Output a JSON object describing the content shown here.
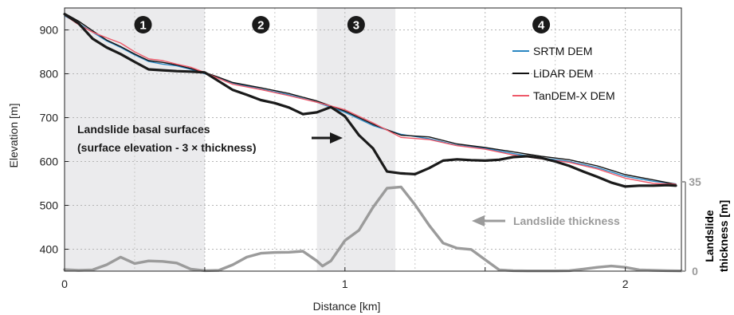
{
  "chart_data": {
    "type": "line",
    "xlabel": "Distance [km]",
    "ylabel": "Elevation [m]",
    "xlim": [
      0,
      2.2
    ],
    "ylim": [
      350,
      950
    ],
    "x_ticks": [
      0,
      0.5,
      1,
      1.5,
      2
    ],
    "x_tick_labels": [
      "0",
      "",
      "1",
      "",
      "2"
    ],
    "y_ticks": [
      400,
      500,
      600,
      700,
      800,
      900
    ],
    "y_tick_labels": [
      "400",
      "500",
      "600",
      "700",
      "800",
      "900"
    ],
    "grid": "dotted",
    "right_axis": {
      "label": "Landslide thickness [m]",
      "label_lines": [
        "Landslide",
        "thickness [m]"
      ],
      "ylim": [
        0,
        35
      ],
      "ticks": [
        0,
        35
      ],
      "tick_labels": [
        "0",
        "35"
      ],
      "color": "#9b9b9b"
    },
    "zones": [
      {
        "label": "1",
        "x_range": [
          0,
          0.5
        ],
        "label_x": 0.28,
        "shaded": true
      },
      {
        "label": "2",
        "x_range": [
          0.5,
          0.9
        ],
        "label_x": 0.7,
        "shaded": false
      },
      {
        "label": "3",
        "x_range": [
          0.9,
          1.18
        ],
        "label_x": 1.04,
        "shaded": true
      },
      {
        "label": "4",
        "x_range": [
          1.18,
          2.2
        ],
        "label_x": 1.7,
        "shaded": false
      }
    ],
    "zone_colors": {
      "shade": "#ebebed",
      "marker": "#1a1a1a"
    },
    "legend": {
      "position": "top-right"
    },
    "series": [
      {
        "name": "SRTM DEM",
        "color": "#2a86c2",
        "width": 1.4,
        "x": [
          0,
          0.05,
          0.1,
          0.15,
          0.2,
          0.25,
          0.3,
          0.35,
          0.4,
          0.45,
          0.5,
          0.55,
          0.6,
          0.7,
          0.8,
          0.9,
          1.0,
          1.1,
          1.2,
          1.3,
          1.4,
          1.5,
          1.6,
          1.7,
          1.8,
          1.9,
          2.0,
          2.1,
          2.18
        ],
        "y": [
          932,
          915,
          895,
          875,
          860,
          843,
          828,
          822,
          818,
          810,
          800,
          790,
          779,
          765,
          752,
          735,
          712,
          682,
          662,
          652,
          637,
          630,
          618,
          608,
          600,
          586,
          566,
          555,
          549
        ]
      },
      {
        "name": "LiDAR DEM",
        "color": "#111111",
        "width": 1.4,
        "x": [
          0,
          0.05,
          0.1,
          0.15,
          0.2,
          0.25,
          0.3,
          0.35,
          0.4,
          0.45,
          0.5,
          0.55,
          0.6,
          0.7,
          0.8,
          0.9,
          1.0,
          1.1,
          1.2,
          1.3,
          1.4,
          1.5,
          1.6,
          1.7,
          1.8,
          1.9,
          2.0,
          2.1,
          2.18
        ],
        "y": [
          938,
          920,
          898,
          877,
          862,
          845,
          830,
          826,
          820,
          812,
          803,
          792,
          780,
          768,
          755,
          738,
          715,
          685,
          660,
          656,
          640,
          632,
          622,
          612,
          604,
          590,
          570,
          558,
          548
        ]
      },
      {
        "name": "TanDEM-X DEM",
        "color": "#ee5a6a",
        "width": 1.4,
        "x": [
          0,
          0.05,
          0.1,
          0.15,
          0.2,
          0.25,
          0.3,
          0.35,
          0.4,
          0.45,
          0.5,
          0.55,
          0.6,
          0.7,
          0.8,
          0.9,
          1.0,
          1.1,
          1.2,
          1.3,
          1.4,
          1.5,
          1.6,
          1.7,
          1.8,
          1.9,
          2.0,
          2.1,
          2.18
        ],
        "y": [
          934,
          912,
          895,
          882,
          870,
          850,
          834,
          830,
          822,
          815,
          803,
          789,
          776,
          764,
          750,
          735,
          718,
          688,
          655,
          650,
          636,
          628,
          615,
          606,
          598,
          583,
          562,
          550,
          548
        ]
      },
      {
        "name": "Landslide basal surfaces",
        "color": "#1a1a1a",
        "width": 3.2,
        "x": [
          0,
          0.05,
          0.1,
          0.15,
          0.2,
          0.25,
          0.3,
          0.35,
          0.4,
          0.45,
          0.5,
          0.55,
          0.6,
          0.65,
          0.7,
          0.75,
          0.8,
          0.85,
          0.9,
          0.95,
          1.0,
          1.05,
          1.1,
          1.15,
          1.2,
          1.25,
          1.3,
          1.35,
          1.4,
          1.45,
          1.5,
          1.55,
          1.6,
          1.65,
          1.7,
          1.75,
          1.8,
          1.85,
          1.9,
          1.95,
          2.0,
          2.05,
          2.1,
          2.15,
          2.18
        ],
        "y": [
          936,
          915,
          880,
          860,
          845,
          827,
          810,
          808,
          806,
          805,
          803,
          783,
          763,
          752,
          740,
          733,
          723,
          708,
          712,
          724,
          703,
          660,
          630,
          577,
          573,
          571,
          585,
          602,
          605,
          603,
          602,
          604,
          610,
          612,
          608,
          600,
          590,
          577,
          565,
          552,
          543,
          545,
          545,
          546,
          545
        ]
      },
      {
        "name": "Landslide thickness",
        "color": "#9b9b9b",
        "width": 3.4,
        "axis": "right",
        "x": [
          0,
          0.05,
          0.1,
          0.15,
          0.2,
          0.25,
          0.3,
          0.35,
          0.4,
          0.45,
          0.5,
          0.55,
          0.6,
          0.65,
          0.7,
          0.75,
          0.8,
          0.85,
          0.9,
          0.92,
          0.95,
          1.0,
          1.05,
          1.1,
          1.15,
          1.2,
          1.25,
          1.3,
          1.35,
          1.4,
          1.45,
          1.5,
          1.55,
          1.6,
          1.65,
          1.7,
          1.75,
          1.8,
          1.85,
          1.9,
          1.95,
          2.0,
          2.05,
          2.1,
          2.15,
          2.2
        ],
        "y": [
          0.6,
          0.3,
          0.5,
          2.5,
          5.5,
          3.0,
          4.0,
          3.8,
          3.2,
          0.8,
          0.2,
          0.3,
          2.5,
          5.5,
          7.0,
          7.3,
          7.4,
          7.8,
          4.0,
          2.0,
          4.0,
          12.0,
          16.0,
          25.0,
          32.5,
          33.0,
          26.0,
          18.0,
          11.0,
          9.0,
          8.5,
          4.5,
          0.5,
          0.2,
          0.1,
          0.1,
          0.1,
          0.2,
          0.8,
          1.5,
          2.0,
          1.5,
          0.5,
          0.3,
          0.2,
          0.1
        ]
      }
    ],
    "annotations": {
      "basal": {
        "line1": "Landslide basal surfaces",
        "line2": "(surface elevation - 3 × thickness)",
        "color": "#1a1a1a"
      },
      "thickness": {
        "text": "Landslide thickness",
        "color": "#9b9b9b"
      }
    }
  }
}
